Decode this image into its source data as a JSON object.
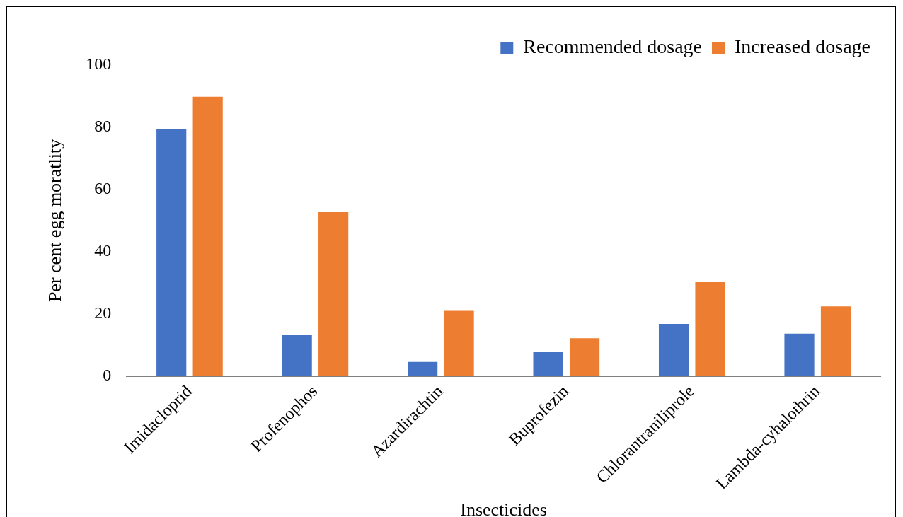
{
  "chart_data": {
    "type": "bar",
    "xlabel": "Insecticides",
    "ylabel": "Per cent egg moratlity",
    "categories": [
      "Imidacloprid",
      "Profenophos",
      "Azardirachtin",
      "Buprofezin",
      "Chlorantraniliprole",
      "Lambda-cyhalothrin"
    ],
    "series": [
      {
        "name": "Recommended dosage",
        "color": "#4472c4",
        "values": [
          79.4,
          13.4,
          4.6,
          7.8,
          16.8,
          13.7
        ]
      },
      {
        "name": "Increased dosage",
        "color": "#ed7d31",
        "values": [
          89.8,
          52.7,
          21,
          12.2,
          30.2,
          22.4
        ]
      }
    ],
    "ylim": [
      0,
      100
    ],
    "yticks": [
      0,
      20,
      40,
      60,
      80,
      100
    ],
    "grid": false,
    "legend": "top right"
  }
}
